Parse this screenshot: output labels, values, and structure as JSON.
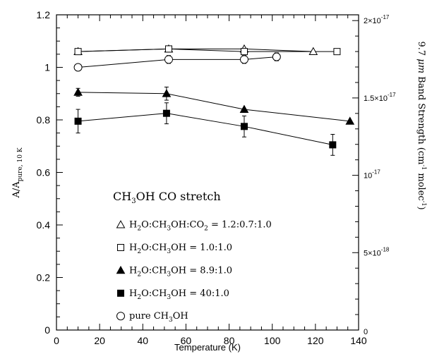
{
  "chart_data": {
    "type": "scatter",
    "xlabel": "Temperature (K)",
    "ylabel": {
      "main": "A/A",
      "sub": "pure, 10 K"
    },
    "xlim": [
      0,
      140
    ],
    "ylim": [
      0,
      1.2
    ],
    "xticks": [
      "0",
      "20",
      "40",
      "60",
      "80",
      "100",
      "120",
      "140"
    ],
    "yticks": [
      "0",
      "0.2",
      "0.4",
      "0.6",
      "0.8",
      "1",
      "1.2"
    ],
    "right_axis": {
      "title": [
        "9.7 ",
        "μm",
        " Band Strength (cm",
        "-1",
        " molec",
        "-1",
        ")"
      ],
      "ticks": [
        {
          "y": 0,
          "mant": "0",
          "exp": ""
        },
        {
          "y": 0.2945,
          "mant": "5×10",
          "exp": "-18"
        },
        {
          "y": 0.589,
          "mant": "10",
          "exp": "-17"
        },
        {
          "y": 0.8835,
          "mant": "1.5×10",
          "exp": "-17"
        },
        {
          "y": 1.178,
          "mant": "2×10",
          "exp": "-17"
        }
      ]
    },
    "legend": {
      "title": {
        "pre": "CH",
        "sub": "3",
        "post": "OH CO stretch"
      },
      "entries": [
        {
          "marker": "triangle-open",
          "parts": [
            "H",
            "2",
            "O:CH",
            "3",
            "OH:CO",
            "2",
            " = 1.2:0.7:1.0"
          ]
        },
        {
          "marker": "square-open",
          "parts": [
            "H",
            "2",
            "O:CH",
            "3",
            "OH = 1.0:1.0"
          ]
        },
        {
          "marker": "triangle-filled",
          "parts": [
            "H",
            "2",
            "O:CH",
            "3",
            "OH = 8.9:1.0"
          ]
        },
        {
          "marker": "square-filled",
          "parts": [
            "H",
            "2",
            "O:CH",
            "3",
            "OH = 40:1.0"
          ]
        },
        {
          "marker": "circle-open",
          "parts": [
            "pure CH",
            "3",
            "OH"
          ]
        }
      ]
    },
    "series": [
      {
        "marker": "triangle-open",
        "x": [
          10,
          52,
          87,
          119
        ],
        "y": [
          1.06,
          1.07,
          1.07,
          1.06
        ],
        "err": [
          0.005,
          0.005,
          0.005,
          0.005
        ]
      },
      {
        "marker": "square-open",
        "x": [
          10,
          52,
          87,
          130
        ],
        "y": [
          1.06,
          1.07,
          1.06,
          1.06
        ],
        "err": [
          0.005,
          0.005,
          0.005,
          0.005
        ]
      },
      {
        "marker": "triangle-filled",
        "x": [
          10,
          51,
          87,
          136
        ],
        "y": [
          0.905,
          0.9,
          0.84,
          0.795
        ],
        "err": [
          0.015,
          0.025,
          0.005,
          0.005
        ]
      },
      {
        "marker": "square-filled",
        "x": [
          10,
          51,
          87,
          128
        ],
        "y": [
          0.795,
          0.825,
          0.775,
          0.705
        ],
        "err": [
          0.045,
          0.04,
          0.04,
          0.04
        ]
      },
      {
        "marker": "circle-open",
        "x": [
          10,
          52,
          87,
          102
        ],
        "y": [
          1.0,
          1.03,
          1.03,
          1.04
        ],
        "err": [
          0.005,
          0.015,
          0.015,
          0.015
        ]
      }
    ]
  }
}
